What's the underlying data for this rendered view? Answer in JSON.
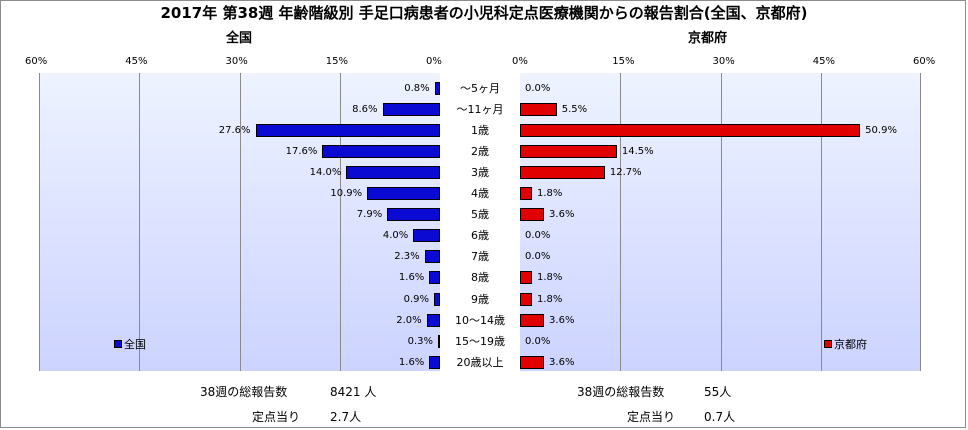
{
  "title": "2017年 第38週 年齢階級別 手足口病患者の小児科定点医療機関からの報告割合(全国、京都府)",
  "colors": {
    "national": "#0a0ad2",
    "kyoto": "#e00000",
    "plot_top": "#eef3ff",
    "plot_bottom": "#ccd3ff"
  },
  "chart_data": [
    {
      "type": "bar",
      "orientation": "horizontal",
      "direction": "right-to-left",
      "title": "全国",
      "categories": [
        "～5ヶ月",
        "～11ヶ月",
        "1歳",
        "2歳",
        "3歳",
        "4歳",
        "5歳",
        "6歳",
        "7歳",
        "8歳",
        "9歳",
        "10～14歳",
        "15～19歳",
        "20歳以上"
      ],
      "series": [
        {
          "name": "全国",
          "values": [
            0.8,
            8.6,
            27.6,
            17.6,
            14.0,
            10.9,
            7.9,
            4.0,
            2.3,
            1.6,
            0.9,
            2.0,
            0.3,
            1.6
          ]
        }
      ],
      "value_labels": [
        "0.8%",
        "8.6%",
        "27.6%",
        "17.6%",
        "14.0%",
        "10.9%",
        "7.9%",
        "4.0%",
        "2.3%",
        "1.6%",
        "0.9%",
        "2.0%",
        "0.3%",
        "1.6%"
      ],
      "xlim": [
        0,
        60
      ],
      "ticks": [
        "60%",
        "45%",
        "30%",
        "15%",
        "0%"
      ],
      "legend_position": "bottom-left",
      "grid": true
    },
    {
      "type": "bar",
      "orientation": "horizontal",
      "direction": "left-to-right",
      "title": "京都府",
      "categories": [
        "～5ヶ月",
        "～11ヶ月",
        "1歳",
        "2歳",
        "3歳",
        "4歳",
        "5歳",
        "6歳",
        "7歳",
        "8歳",
        "9歳",
        "10～14歳",
        "15～19歳",
        "20歳以上"
      ],
      "series": [
        {
          "name": "京都府",
          "values": [
            0.0,
            5.5,
            50.9,
            14.5,
            12.7,
            1.8,
            3.6,
            0.0,
            0.0,
            1.8,
            1.8,
            3.6,
            0.0,
            3.6
          ]
        }
      ],
      "value_labels": [
        "0.0%",
        "5.5%",
        "50.9%",
        "14.5%",
        "12.7%",
        "1.8%",
        "3.6%",
        "0.0%",
        "0.0%",
        "1.8%",
        "1.8%",
        "3.6%",
        "0.0%",
        "3.6%"
      ],
      "xlim": [
        0,
        60
      ],
      "ticks": [
        "0%",
        "15%",
        "30%",
        "45%",
        "60%"
      ],
      "legend_position": "bottom-right",
      "grid": true
    }
  ],
  "stats": {
    "national": {
      "total_label": "38週の総報告数",
      "total_value": "8421 人",
      "per_site_label": "定点当り",
      "per_site_value": "2.7人"
    },
    "kyoto": {
      "total_label": "38週の総報告数",
      "total_value": "55人",
      "per_site_label": "定点当り",
      "per_site_value": "0.7人"
    }
  }
}
